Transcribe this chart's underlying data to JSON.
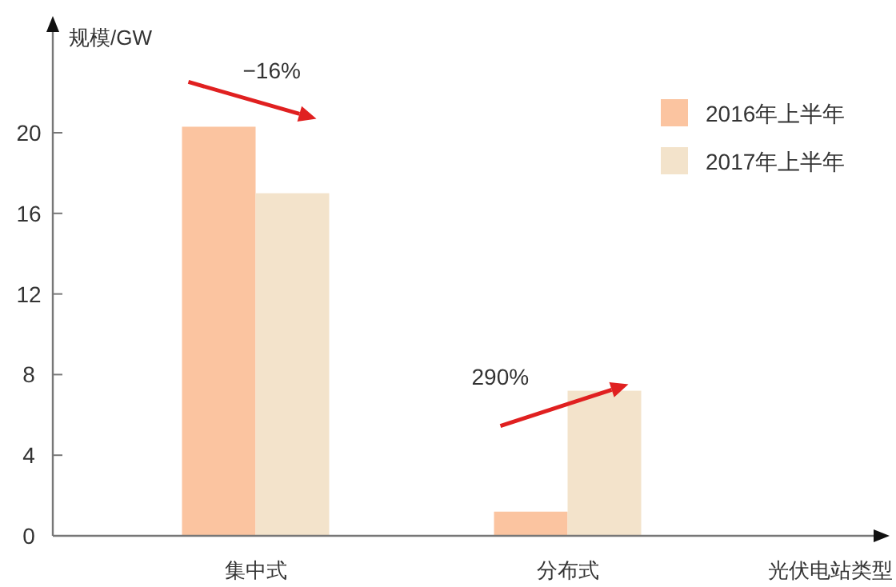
{
  "chart_data": {
    "type": "bar",
    "ylabel": "规模/GW",
    "xlabel": "光伏电站类型",
    "categories": [
      "集中式",
      "分布式"
    ],
    "series": [
      {
        "name": "2016年上半年",
        "color": "#fbc4a0",
        "values": [
          20.3,
          1.2
        ]
      },
      {
        "name": "2017年上半年",
        "color": "#f3e3cb",
        "values": [
          17.0,
          7.2
        ]
      }
    ],
    "ylim": [
      0,
      25
    ],
    "yticks": [
      0,
      4,
      8,
      12,
      16,
      20
    ],
    "legend": "top right",
    "grid": false,
    "annotations": [
      "−16%",
      "290%"
    ]
  }
}
